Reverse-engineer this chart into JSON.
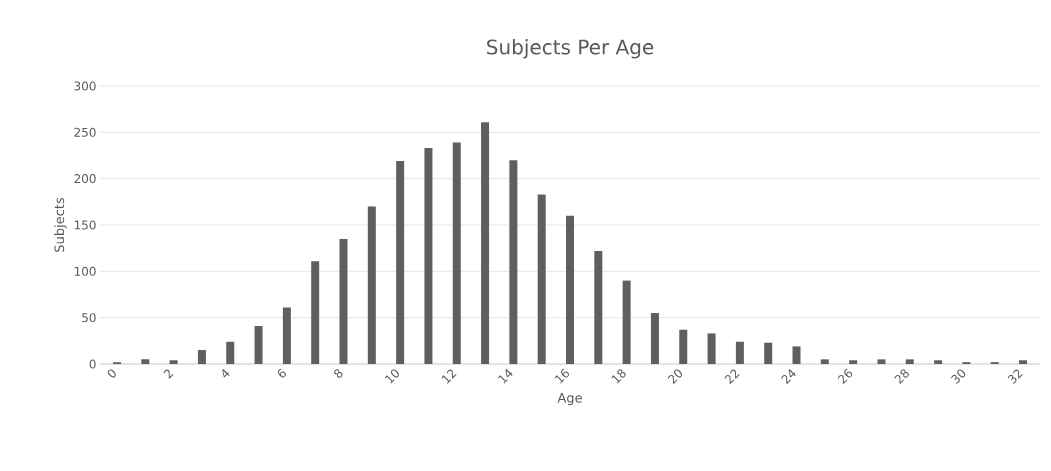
{
  "chart_data": {
    "type": "bar",
    "title": "Subjects Per Age",
    "xlabel": "Age",
    "ylabel": "Subjects",
    "categories": [
      "0",
      null,
      "2",
      null,
      "4",
      null,
      "6",
      null,
      "8",
      null,
      "10",
      null,
      "12",
      null,
      "14",
      null,
      "16",
      null,
      "18",
      null,
      "20",
      null,
      "22",
      null,
      "24",
      null,
      "26",
      null,
      "28",
      null,
      "30",
      null,
      "32"
    ],
    "values": [
      2,
      5,
      4,
      15,
      24,
      41,
      61,
      111,
      135,
      170,
      219,
      233,
      239,
      261,
      220,
      183,
      160,
      122,
      90,
      55,
      37,
      33,
      24,
      23,
      19,
      5,
      4,
      5,
      5,
      4,
      2,
      2,
      4
    ],
    "color": "#5f5f5f",
    "ylim": [
      0,
      300
    ],
    "yticks": [
      0,
      50,
      100,
      150,
      200,
      250,
      300
    ],
    "grid": "y"
  }
}
